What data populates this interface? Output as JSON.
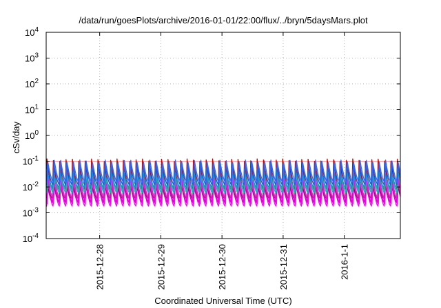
{
  "chart_data": {
    "type": "line",
    "title": "/data/run/goesPlots/archive/2016-01-01/22:00/flux/../bryn/5daysMars.plot",
    "xlabel": "Coordinated Universal Time (UTC)",
    "ylabel": "cSv/day",
    "yscale": "log",
    "ylim": [
      0.0001,
      10000
    ],
    "y_ticks": [
      {
        "base": "10",
        "exp": "-4"
      },
      {
        "base": "10",
        "exp": "-3"
      },
      {
        "base": "10",
        "exp": "-2"
      },
      {
        "base": "10",
        "exp": "-1"
      },
      {
        "base": "10",
        "exp": "0"
      },
      {
        "base": "10",
        "exp": "1"
      },
      {
        "base": "10",
        "exp": "2"
      },
      {
        "base": "10",
        "exp": "3"
      },
      {
        "base": "10",
        "exp": "4"
      }
    ],
    "xlim": [
      "2015-12-27 03:00",
      "2016-01-01 22:00"
    ],
    "x_ticks": [
      "2015-12-28",
      "2015-12-29",
      "2015-12-30",
      "2015-12-31",
      "2016-1-1"
    ],
    "grid": true,
    "reference_line": {
      "y": 0.1,
      "color": "#ff9999"
    },
    "pattern": {
      "cycle_hours": 2.5,
      "description": "sawtooth: sharp rise then decay within each cycle"
    },
    "series": [
      {
        "color": "#cc0000",
        "peak": 0.11,
        "trough": 0.008
      },
      {
        "color": "#ff00ff",
        "peak": 0.022,
        "trough": 0.0018
      },
      {
        "color": "#ff00ff",
        "peak": 0.018,
        "trough": 0.0022
      },
      {
        "color": "#dd00cc",
        "peak": 0.015,
        "trough": 0.0026
      },
      {
        "color": "#990066",
        "peak": 0.012,
        "trough": 0.0035
      },
      {
        "color": "#ff00ff",
        "peak": 0.025,
        "trough": 0.0032
      },
      {
        "color": "#cc33aa",
        "peak": 0.02,
        "trough": 0.004
      },
      {
        "color": "#00bbbb",
        "peak": 0.04,
        "trough": 0.006
      },
      {
        "color": "#33aaaa",
        "peak": 0.03,
        "trough": 0.007
      },
      {
        "color": "#0099cc",
        "peak": 0.05,
        "trough": 0.01
      },
      {
        "color": "#2255dd",
        "peak": 0.09,
        "trough": 0.012
      },
      {
        "color": "#3366ff",
        "peak": 0.1,
        "trough": 0.015
      }
    ]
  }
}
